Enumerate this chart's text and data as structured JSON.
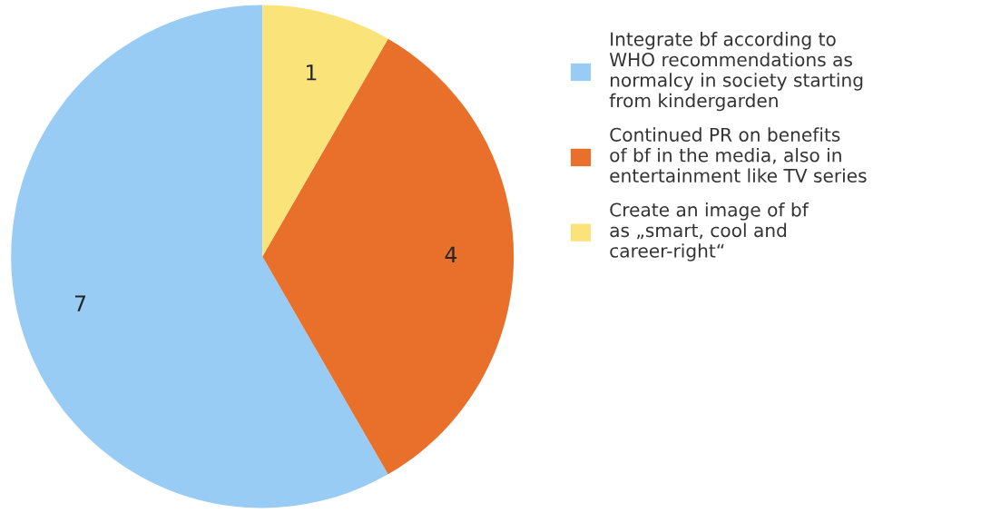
{
  "chart_data": {
    "type": "pie",
    "categories": [
      "Integrate bf according to\nWHO recommendations as\nnormalcy in society starting\nfrom kindergarden",
      "Continued PR on benefits\nof bf in the media, also in\nentertainment like TV series",
      "Create an image of bf\nas „smart, cool and\ncareer-right“"
    ],
    "values": [
      7,
      4,
      1
    ],
    "colors": [
      "#99ccf5",
      "#e8702a",
      "#fae47a"
    ],
    "data_labels": true,
    "legend": "right"
  }
}
